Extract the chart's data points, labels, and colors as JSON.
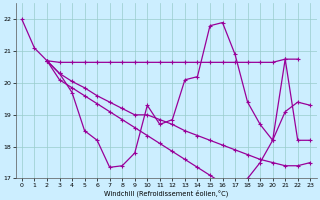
{
  "xlabel": "Windchill (Refroidissement éolien,°C)",
  "background_color": "#cceeff",
  "line_color": "#990099",
  "grid_color": "#99cccc",
  "xlim": [
    -0.5,
    23.5
  ],
  "ylim": [
    17,
    22.5
  ],
  "yticks": [
    17,
    18,
    19,
    20,
    21,
    22
  ],
  "xticks": [
    0,
    1,
    2,
    3,
    4,
    5,
    6,
    7,
    8,
    9,
    10,
    11,
    12,
    13,
    14,
    15,
    16,
    17,
    18,
    19,
    20,
    21,
    22,
    23
  ],
  "series1": [
    [
      0,
      22.0
    ],
    [
      1,
      21.1
    ],
    [
      2,
      20.7
    ],
    [
      3,
      20.3
    ],
    [
      4,
      19.7
    ],
    [
      5,
      18.5
    ],
    [
      6,
      18.2
    ],
    [
      7,
      17.35
    ],
    [
      8,
      17.4
    ],
    [
      9,
      17.8
    ],
    [
      10,
      19.3
    ],
    [
      11,
      18.7
    ],
    [
      12,
      18.85
    ],
    [
      13,
      20.1
    ],
    [
      14,
      20.2
    ],
    [
      15,
      21.8
    ],
    [
      16,
      21.9
    ],
    [
      17,
      20.9
    ],
    [
      18,
      19.4
    ],
    [
      19,
      18.7
    ],
    [
      20,
      18.2
    ],
    [
      21,
      20.75
    ],
    [
      22,
      18.2
    ],
    [
      23,
      18.2
    ]
  ],
  "series2": [
    [
      2,
      20.7
    ],
    [
      3,
      20.65
    ],
    [
      4,
      20.65
    ],
    [
      5,
      20.65
    ],
    [
      6,
      20.65
    ],
    [
      7,
      20.65
    ],
    [
      8,
      20.65
    ],
    [
      9,
      20.65
    ],
    [
      10,
      20.65
    ],
    [
      11,
      20.65
    ],
    [
      12,
      20.65
    ],
    [
      13,
      20.65
    ],
    [
      14,
      20.65
    ],
    [
      15,
      20.65
    ],
    [
      16,
      20.65
    ],
    [
      17,
      20.65
    ],
    [
      18,
      20.65
    ],
    [
      19,
      20.65
    ],
    [
      20,
      20.65
    ],
    [
      21,
      20.75
    ],
    [
      22,
      20.75
    ]
  ],
  "series3": [
    [
      2,
      20.7
    ],
    [
      3,
      20.1
    ],
    [
      4,
      19.85
    ],
    [
      5,
      19.6
    ],
    [
      6,
      19.35
    ],
    [
      7,
      19.1
    ],
    [
      8,
      18.85
    ],
    [
      9,
      18.6
    ],
    [
      10,
      18.35
    ],
    [
      11,
      18.1
    ],
    [
      12,
      17.85
    ],
    [
      13,
      17.6
    ],
    [
      14,
      17.35
    ],
    [
      15,
      17.1
    ],
    [
      16,
      16.85
    ],
    [
      17,
      16.6
    ],
    [
      18,
      17.0
    ],
    [
      19,
      17.5
    ],
    [
      20,
      18.2
    ],
    [
      21,
      19.1
    ],
    [
      22,
      19.4
    ],
    [
      23,
      19.3
    ]
  ],
  "series4": [
    [
      2,
      20.7
    ],
    [
      3,
      20.3
    ],
    [
      4,
      20.05
    ],
    [
      5,
      19.85
    ],
    [
      6,
      19.6
    ],
    [
      7,
      19.4
    ],
    [
      8,
      19.2
    ],
    [
      9,
      19.0
    ],
    [
      10,
      19.0
    ],
    [
      11,
      18.85
    ],
    [
      12,
      18.7
    ],
    [
      13,
      18.5
    ],
    [
      14,
      18.35
    ],
    [
      15,
      18.2
    ],
    [
      16,
      18.05
    ],
    [
      17,
      17.9
    ],
    [
      18,
      17.75
    ],
    [
      19,
      17.6
    ],
    [
      20,
      17.5
    ],
    [
      21,
      17.4
    ],
    [
      22,
      17.4
    ],
    [
      23,
      17.5
    ]
  ]
}
